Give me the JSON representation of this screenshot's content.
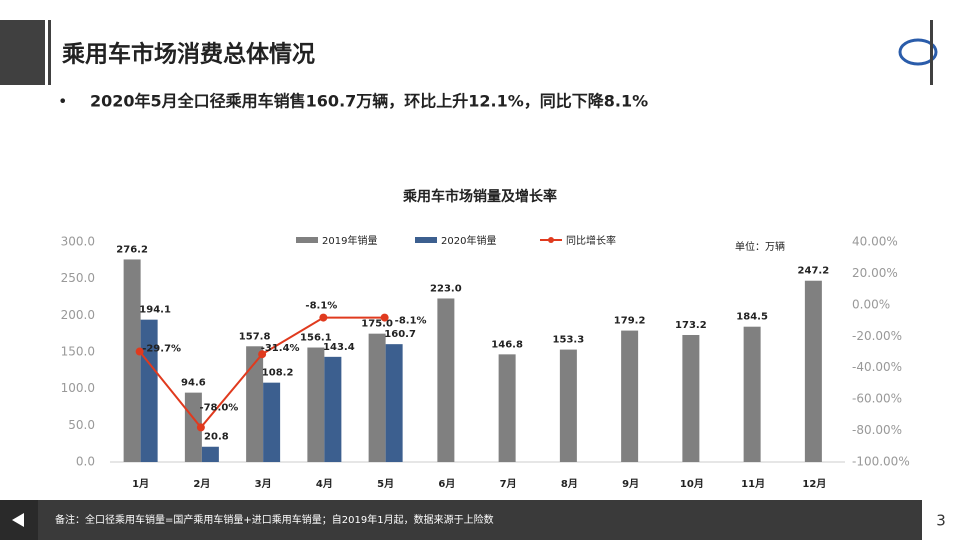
{
  "header": {
    "title": "乘用车市场消费总体情况",
    "bullet": "2020年5月全口径乘用车销售160.7万辆，环比上升12.1%，同比下降8.1%"
  },
  "chart_data": {
    "type": "bar",
    "title": "乘用车市场销量及增长率",
    "unit": "单位：万辆",
    "categories": [
      "1月",
      "2月",
      "3月",
      "4月",
      "5月",
      "6月",
      "7月",
      "8月",
      "9月",
      "10月",
      "11月",
      "12月"
    ],
    "series": [
      {
        "name": "2019年销量",
        "type": "bar",
        "color": "#808080",
        "values": [
          276.2,
          94.6,
          157.8,
          156.1,
          175.0,
          223.0,
          146.8,
          153.3,
          179.2,
          173.2,
          184.5,
          247.2
        ],
        "value_labels": [
          "276.2",
          "94.6",
          "157.8",
          "156.1",
          "175.0",
          "223.0",
          "146.8",
          "153.3",
          "179.2",
          "173.2",
          "184.5",
          "247.2"
        ]
      },
      {
        "name": "2020年销量",
        "type": "bar",
        "color": "#3c5f8f",
        "values": [
          194.1,
          20.8,
          108.2,
          143.4,
          160.7,
          null,
          null,
          null,
          null,
          null,
          null,
          null
        ],
        "value_labels": [
          "194.1",
          "20.8",
          "108.2",
          "143.4",
          "160.7",
          null,
          null,
          null,
          null,
          null,
          null,
          null
        ]
      },
      {
        "name": "同比增长率",
        "type": "line",
        "axis": "y2",
        "color": "#e03a1e",
        "values": [
          -29.7,
          -78.0,
          -31.4,
          -8.1,
          -8.1,
          null,
          null,
          null,
          null,
          null,
          null,
          null
        ],
        "value_labels": [
          "-29.7%",
          "-78.0%",
          "-31.4%",
          "-8.1%",
          "-8.1%",
          null,
          null,
          null,
          null,
          null,
          null,
          null
        ]
      }
    ],
    "ylim": [
      0,
      300
    ],
    "yticks": [
      {
        "value": 0,
        "label": "0.0"
      },
      {
        "value": 50,
        "label": "50.0"
      },
      {
        "value": 100,
        "label": "100.0"
      },
      {
        "value": 150,
        "label": "150.0"
      },
      {
        "value": 200,
        "label": "200.0"
      },
      {
        "value": 250,
        "label": "250.0"
      },
      {
        "value": 300,
        "label": "300.0"
      }
    ],
    "y2lim": [
      -100,
      40
    ],
    "y2ticks": [
      {
        "value": -100,
        "label": "-100.00%"
      },
      {
        "value": -80,
        "label": "-80.00%"
      },
      {
        "value": -60,
        "label": "-60.00%"
      },
      {
        "value": -40,
        "label": "-40.00%"
      },
      {
        "value": -20,
        "label": "-20.00%"
      },
      {
        "value": 0,
        "label": "0.00%"
      },
      {
        "value": 20,
        "label": "20.00%"
      },
      {
        "value": 40,
        "label": "40.00%"
      }
    ],
    "grid": false
  },
  "footer": {
    "note": "备注：全口径乘用车销量=国产乘用车销量+进口乘用车销量；自2019年1月起，数据来源于上险数",
    "page": "3"
  }
}
